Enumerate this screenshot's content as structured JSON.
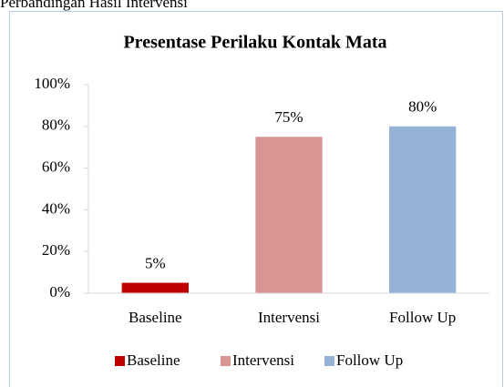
{
  "heading": "Perbandingan Hasil Intervensi",
  "chart_data": {
    "type": "bar",
    "title": "Presentase Perilaku Kontak Mata",
    "categories": [
      "Baseline",
      "Intervensi",
      "Follow Up"
    ],
    "values": [
      5,
      75,
      80
    ],
    "value_labels": [
      "5%",
      "75%",
      "80%"
    ],
    "colors": [
      "#c00000",
      "#d99594",
      "#95b3d7"
    ],
    "ylim": [
      0,
      100
    ],
    "yticks": [
      {
        "value": 0,
        "label": "0%"
      },
      {
        "value": 20,
        "label": "20%"
      },
      {
        "value": 40,
        "label": "40%"
      },
      {
        "value": 60,
        "label": "60%"
      },
      {
        "value": 80,
        "label": "80%"
      },
      {
        "value": 100,
        "label": "100%"
      }
    ],
    "grid": false,
    "legend": "bottom"
  }
}
